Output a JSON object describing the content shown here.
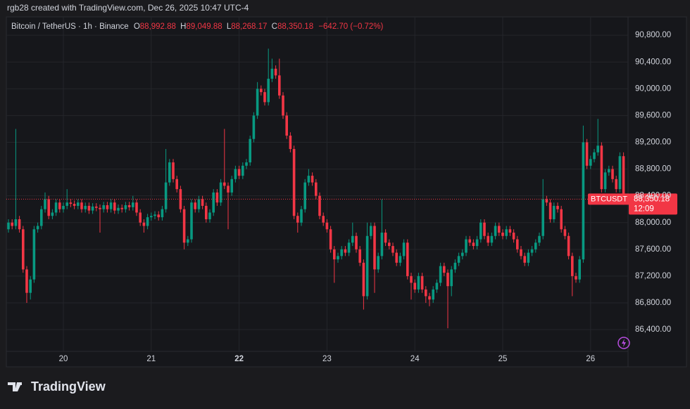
{
  "header": {
    "credit": "rgb28 created with TradingView.com, Dec 26, 2025 10:47 UTC-4"
  },
  "footer": {
    "brand": "TradingView"
  },
  "chart_data": {
    "type": "candlestick",
    "legend": {
      "symbol": "Bitcoin / TetherUS · 1h · Binance",
      "open_label": "O",
      "open": "88,992.88",
      "high_label": "H",
      "high": "89,049.88",
      "low_label": "L",
      "low": "88,268.17",
      "close_label": "C",
      "close": "88,350.18",
      "change": "−642.70 (−0.72%)"
    },
    "price_label": {
      "symbol": "BTCUSDT",
      "price": "88,350.18",
      "countdown": "12:09"
    },
    "up_color": "#089981",
    "down_color": "#f23645",
    "open": [
      87900,
      88000,
      87950,
      88050,
      87900,
      87300,
      86950,
      87150,
      87900,
      87950,
      88200,
      88350,
      88100,
      88150,
      88300,
      88200,
      88250,
      88300,
      88280,
      88250,
      88300,
      88200,
      88250,
      88180,
      88240,
      88220,
      88200,
      88260,
      88200,
      88300,
      88180,
      88220,
      88200,
      88260,
      88230,
      88300,
      88150,
      88000,
      87950,
      88080,
      88100,
      88120,
      88080,
      88200,
      88600,
      88900,
      88650,
      88500,
      88200,
      87700,
      87750,
      88300,
      88200,
      88350,
      88250,
      88050,
      88150,
      88450,
      88300,
      88600,
      88550,
      88450,
      88650,
      88800,
      88700,
      88850,
      88900,
      89250,
      89600,
      90000,
      89950,
      89800,
      90150,
      90300,
      90200,
      89900,
      89600,
      89300,
      89100,
      88100,
      88000,
      88200,
      88600,
      88700,
      88600,
      88400,
      88100,
      88000,
      87900,
      87600,
      87450,
      87500,
      87600,
      87550,
      87700,
      87800,
      87600,
      87400,
      86900,
      87800,
      87950,
      87300,
      87500,
      87850,
      87700,
      87650,
      87550,
      87400,
      87500,
      87700,
      87200,
      87100,
      87000,
      87200,
      87000,
      86900,
      86850,
      87000,
      87100,
      87350,
      87250,
      87050,
      87300,
      87400,
      87500,
      87550,
      87750,
      87700,
      87650,
      87750,
      88000,
      87800,
      87700,
      87800,
      87950,
      87850,
      87800,
      87900,
      87850,
      87750,
      87600,
      87500,
      87400,
      87550,
      87600,
      87700,
      87800,
      88350,
      88300,
      88050,
      88250,
      88200,
      87900,
      87800,
      87500,
      87200,
      87150,
      87450,
      89200,
      88850,
      88950,
      89050,
      89150,
      88500,
      88750,
      88800,
      88650,
      88500,
      88992.88
    ],
    "high": [
      88050,
      88050,
      89400,
      88100,
      87950,
      87350,
      87200,
      87950,
      88000,
      88250,
      88450,
      88400,
      88200,
      88350,
      88350,
      88300,
      88500,
      88350,
      88330,
      88350,
      88350,
      88300,
      88300,
      88290,
      88290,
      88270,
      88310,
      88310,
      88350,
      88350,
      88270,
      88270,
      88310,
      88310,
      88400,
      88350,
      88200,
      88050,
      88130,
      88150,
      88170,
      88170,
      88250,
      89100,
      88950,
      88950,
      88700,
      88550,
      88250,
      87800,
      88350,
      88350,
      88400,
      88400,
      88300,
      88200,
      88500,
      88500,
      88650,
      89400,
      88600,
      88700,
      88850,
      88850,
      88900,
      88950,
      89300,
      89650,
      90100,
      90050,
      90000,
      90600,
      90450,
      90350,
      90450,
      89950,
      89650,
      89350,
      89150,
      88150,
      88250,
      88650,
      88800,
      88750,
      88650,
      88450,
      88150,
      88050,
      87950,
      87650,
      87550,
      87650,
      87650,
      87750,
      88000,
      87850,
      87650,
      87450,
      88000,
      88000,
      88000,
      87550,
      88350,
      87900,
      87750,
      87700,
      87600,
      87550,
      87750,
      87750,
      87250,
      87150,
      87250,
      87250,
      87050,
      86950,
      87050,
      87150,
      87400,
      87400,
      87300,
      87350,
      87450,
      87550,
      87600,
      87800,
      87800,
      87750,
      87800,
      88050,
      88050,
      87850,
      87850,
      88000,
      88000,
      87900,
      87950,
      87950,
      87900,
      87800,
      87650,
      87550,
      87600,
      87650,
      87750,
      87850,
      88650,
      88400,
      88350,
      88300,
      88300,
      88250,
      87950,
      87850,
      87550,
      87250,
      87500,
      89450,
      89250,
      89000,
      89100,
      89550,
      89200,
      88800,
      88850,
      88850,
      88700,
      89050,
      89049.88
    ],
    "low": [
      87850,
      87900,
      87900,
      87850,
      87250,
      86800,
      86850,
      87100,
      87850,
      87900,
      88150,
      88050,
      88050,
      88100,
      88150,
      88150,
      88200,
      88230,
      88200,
      88200,
      88150,
      88150,
      88130,
      88130,
      88170,
      87850,
      88150,
      88150,
      88150,
      88130,
      88130,
      88150,
      88150,
      88180,
      88180,
      88100,
      87950,
      87850,
      87900,
      88030,
      88050,
      88030,
      88030,
      88150,
      88550,
      88600,
      88450,
      88150,
      87600,
      87650,
      87700,
      88150,
      88150,
      88200,
      88000,
      88000,
      88100,
      88250,
      88250,
      88500,
      87900,
      88400,
      88600,
      88650,
      88650,
      88800,
      88850,
      89200,
      89550,
      89900,
      89750,
      89750,
      90100,
      90150,
      89850,
      89550,
      89250,
      89050,
      88050,
      87850,
      87950,
      88150,
      88550,
      88550,
      88350,
      88050,
      87950,
      87850,
      87550,
      87100,
      87400,
      87450,
      87500,
      87500,
      87650,
      87550,
      87350,
      86700,
      86850,
      87750,
      86950,
      87250,
      87450,
      87650,
      87600,
      87500,
      87350,
      87350,
      87450,
      87150,
      86850,
      86950,
      86950,
      86950,
      86800,
      86750,
      86800,
      86950,
      87050,
      87200,
      86420,
      86900,
      87250,
      87350,
      87450,
      87500,
      87650,
      87600,
      87600,
      87700,
      87750,
      87650,
      87650,
      87750,
      87800,
      87750,
      87750,
      87800,
      87700,
      87550,
      87450,
      87350,
      87350,
      87500,
      87550,
      87650,
      87750,
      88250,
      88000,
      88000,
      88150,
      87850,
      87750,
      87450,
      86900,
      87100,
      87100,
      87400,
      88800,
      88800,
      88900,
      89000,
      88450,
      88450,
      88700,
      88600,
      88450,
      88450,
      88268.17
    ],
    "close": [
      88000,
      87950,
      88050,
      87900,
      87300,
      86950,
      87150,
      87900,
      87950,
      88200,
      88350,
      88100,
      88150,
      88300,
      88200,
      88250,
      88300,
      88280,
      88250,
      88300,
      88200,
      88250,
      88180,
      88240,
      88220,
      88200,
      88260,
      88200,
      88300,
      88180,
      88220,
      88200,
      88260,
      88230,
      88300,
      88150,
      88000,
      87950,
      88080,
      88100,
      88120,
      88080,
      88200,
      88600,
      88900,
      88650,
      88500,
      88200,
      87700,
      87750,
      88300,
      88200,
      88350,
      88250,
      88050,
      88150,
      88450,
      88300,
      88600,
      88550,
      88450,
      88650,
      88800,
      88700,
      88850,
      88900,
      89250,
      89600,
      90000,
      89950,
      89800,
      90150,
      90300,
      90200,
      89900,
      89600,
      89300,
      89100,
      88100,
      88000,
      88200,
      88600,
      88700,
      88600,
      88400,
      88100,
      88000,
      87900,
      87600,
      87450,
      87500,
      87600,
      87550,
      87700,
      87800,
      87600,
      87400,
      86900,
      87800,
      87950,
      87300,
      87500,
      87850,
      87700,
      87650,
      87550,
      87400,
      87500,
      87700,
      87200,
      87100,
      87000,
      87200,
      87000,
      86900,
      86850,
      87000,
      87100,
      87350,
      87250,
      87050,
      87300,
      87400,
      87500,
      87550,
      87750,
      87700,
      87650,
      87750,
      88000,
      87800,
      87700,
      87800,
      87950,
      87850,
      87800,
      87900,
      87850,
      87750,
      87600,
      87500,
      87400,
      87550,
      87600,
      87700,
      87800,
      88350,
      88300,
      88050,
      88250,
      88200,
      87900,
      87800,
      87500,
      87200,
      87150,
      87450,
      89200,
      88850,
      88950,
      89050,
      89150,
      88500,
      88750,
      88800,
      88650,
      88500,
      88992.88,
      88350.18
    ],
    "ylim": [
      86075,
      91075
    ],
    "yticks": [
      {
        "value": 86400,
        "label": "86,400.00"
      },
      {
        "value": 86800,
        "label": "86,800.00"
      },
      {
        "value": 87200,
        "label": "87,200.00"
      },
      {
        "value": 87600,
        "label": "87,600.00"
      },
      {
        "value": 88000,
        "label": "88,000.00"
      },
      {
        "value": 88400,
        "label": "88,400.00"
      },
      {
        "value": 88800,
        "label": "88,800.00"
      },
      {
        "value": 89200,
        "label": "89,200.00"
      },
      {
        "value": 89600,
        "label": "89,600.00"
      },
      {
        "value": 90000,
        "label": "90,000.00"
      },
      {
        "value": 90400,
        "label": "90,400.00"
      },
      {
        "value": 90800,
        "label": "90,800.00"
      }
    ],
    "xticks": [
      {
        "value": 15,
        "label": "20"
      },
      {
        "value": 39,
        "label": "21"
      },
      {
        "value": 63,
        "label": "22"
      },
      {
        "value": 87,
        "label": "23"
      },
      {
        "value": 111,
        "label": "24"
      },
      {
        "value": 135,
        "label": "25"
      },
      {
        "value": 159,
        "label": "26"
      }
    ],
    "bold_xtick": 63,
    "grid": true
  }
}
